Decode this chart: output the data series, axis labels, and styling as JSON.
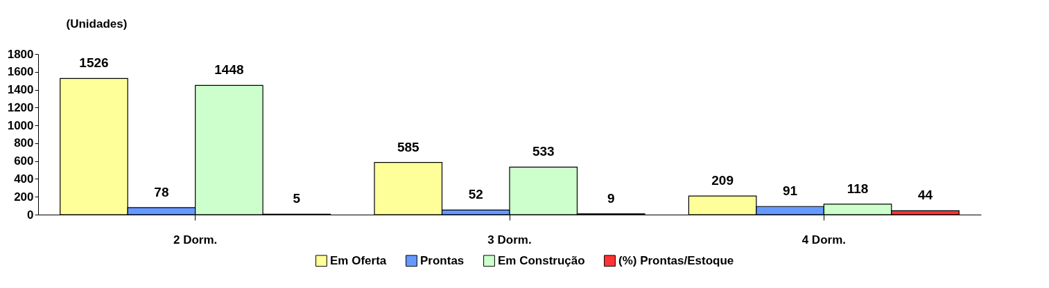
{
  "chart_data": {
    "type": "bar",
    "ylabel": "(Unidades)",
    "categories": [
      "2 Dorm.",
      "3 Dorm.",
      "4 Dorm."
    ],
    "series": [
      {
        "name": "Em Oferta",
        "color": "#ffff99",
        "values": [
          1526,
          585,
          209
        ]
      },
      {
        "name": "Prontas",
        "color": "#6699ff",
        "values": [
          78,
          52,
          91
        ]
      },
      {
        "name": "Em Construção",
        "color": "#ccffcc",
        "values": [
          1448,
          533,
          118
        ]
      },
      {
        "name": "(%) Prontas/Estoque",
        "color": "#ff3333",
        "values": [
          5,
          9,
          44
        ]
      }
    ],
    "ylim": [
      0,
      1800
    ],
    "yticks": [
      0,
      200,
      400,
      600,
      800,
      1000,
      1200,
      1400,
      1600,
      1800
    ],
    "grid": false,
    "legend": "bottom",
    "data_labels": true
  }
}
